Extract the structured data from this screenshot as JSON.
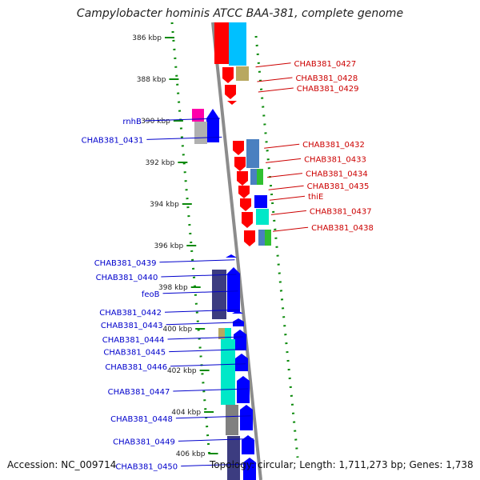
{
  "title": "Campylobacter hominis ATCC BAA-381, complete genome",
  "accession": "Accession: NC_009714",
  "summary": "Topology: circular; Length: 1,711,273 bp; Genes: 1,738",
  "colors": {
    "red": "#ff0000",
    "blue": "#0000ff",
    "cyan": "#00c0ff",
    "olive": "#b8a860",
    "magenta": "#ff00aa",
    "gray": "#b0b0b0",
    "steel": "#4a80c0",
    "green": "#30c030",
    "aqua": "#00e8c8",
    "navy": "#3c3c80",
    "darkgray": "#808080",
    "tick_green": "#0a8a0a",
    "label_red": "#cc0000",
    "label_blue": "#0000cc"
  },
  "position_ticks": [
    {
      "text": "386 kbp",
      "kbp": 386
    },
    {
      "text": "388 kbp",
      "kbp": 388
    },
    {
      "text": "390 kbp",
      "kbp": 390
    },
    {
      "text": "392 kbp",
      "kbp": 392
    },
    {
      "text": "394 kbp",
      "kbp": 394
    },
    {
      "text": "396 kbp",
      "kbp": 396
    },
    {
      "text": "398 kbp",
      "kbp": 398
    },
    {
      "text": "400 kbp",
      "kbp": 400
    },
    {
      "text": "402 kbp",
      "kbp": 402
    },
    {
      "text": "404 kbp",
      "kbp": 404
    },
    {
      "text": "406 kbp",
      "kbp": 406
    }
  ],
  "right_labels": [
    {
      "text": "CHAB381_0427",
      "kbp": 387.3
    },
    {
      "text": "CHAB381_0428",
      "kbp": 388.0
    },
    {
      "text": "CHAB381_0429",
      "kbp": 388.5
    },
    {
      "text": "CHAB381_0432",
      "kbp": 391.2
    },
    {
      "text": "CHAB381_0433",
      "kbp": 391.9
    },
    {
      "text": "CHAB381_0434",
      "kbp": 392.6
    },
    {
      "text": "CHAB381_0435",
      "kbp": 393.2
    },
    {
      "text": "thiE",
      "kbp": 393.7
    },
    {
      "text": "CHAB381_0437",
      "kbp": 394.4
    },
    {
      "text": "CHAB381_0438",
      "kbp": 395.2
    }
  ],
  "left_labels": [
    {
      "text": "rnhB",
      "kbp": 390.0
    },
    {
      "text": "CHAB381_0431",
      "kbp": 390.9
    },
    {
      "text": "CHAB381_0439",
      "kbp": 396.8
    },
    {
      "text": "CHAB381_0440",
      "kbp": 397.5
    },
    {
      "text": "feoB",
      "kbp": 398.3
    },
    {
      "text": "CHAB381_0442",
      "kbp": 399.2
    },
    {
      "text": "CHAB381_0443",
      "kbp": 399.8
    },
    {
      "text": "CHAB381_0444",
      "kbp": 400.5
    },
    {
      "text": "CHAB381_0445",
      "kbp": 401.1
    },
    {
      "text": "CHAB381_0446",
      "kbp": 401.8
    },
    {
      "text": "CHAB381_0447",
      "kbp": 403.0
    },
    {
      "text": "CHAB381_0448",
      "kbp": 404.3
    },
    {
      "text": "CHAB381_0449",
      "kbp": 405.4
    },
    {
      "text": "CHAB381_0450",
      "kbp": 406.6
    }
  ]
}
